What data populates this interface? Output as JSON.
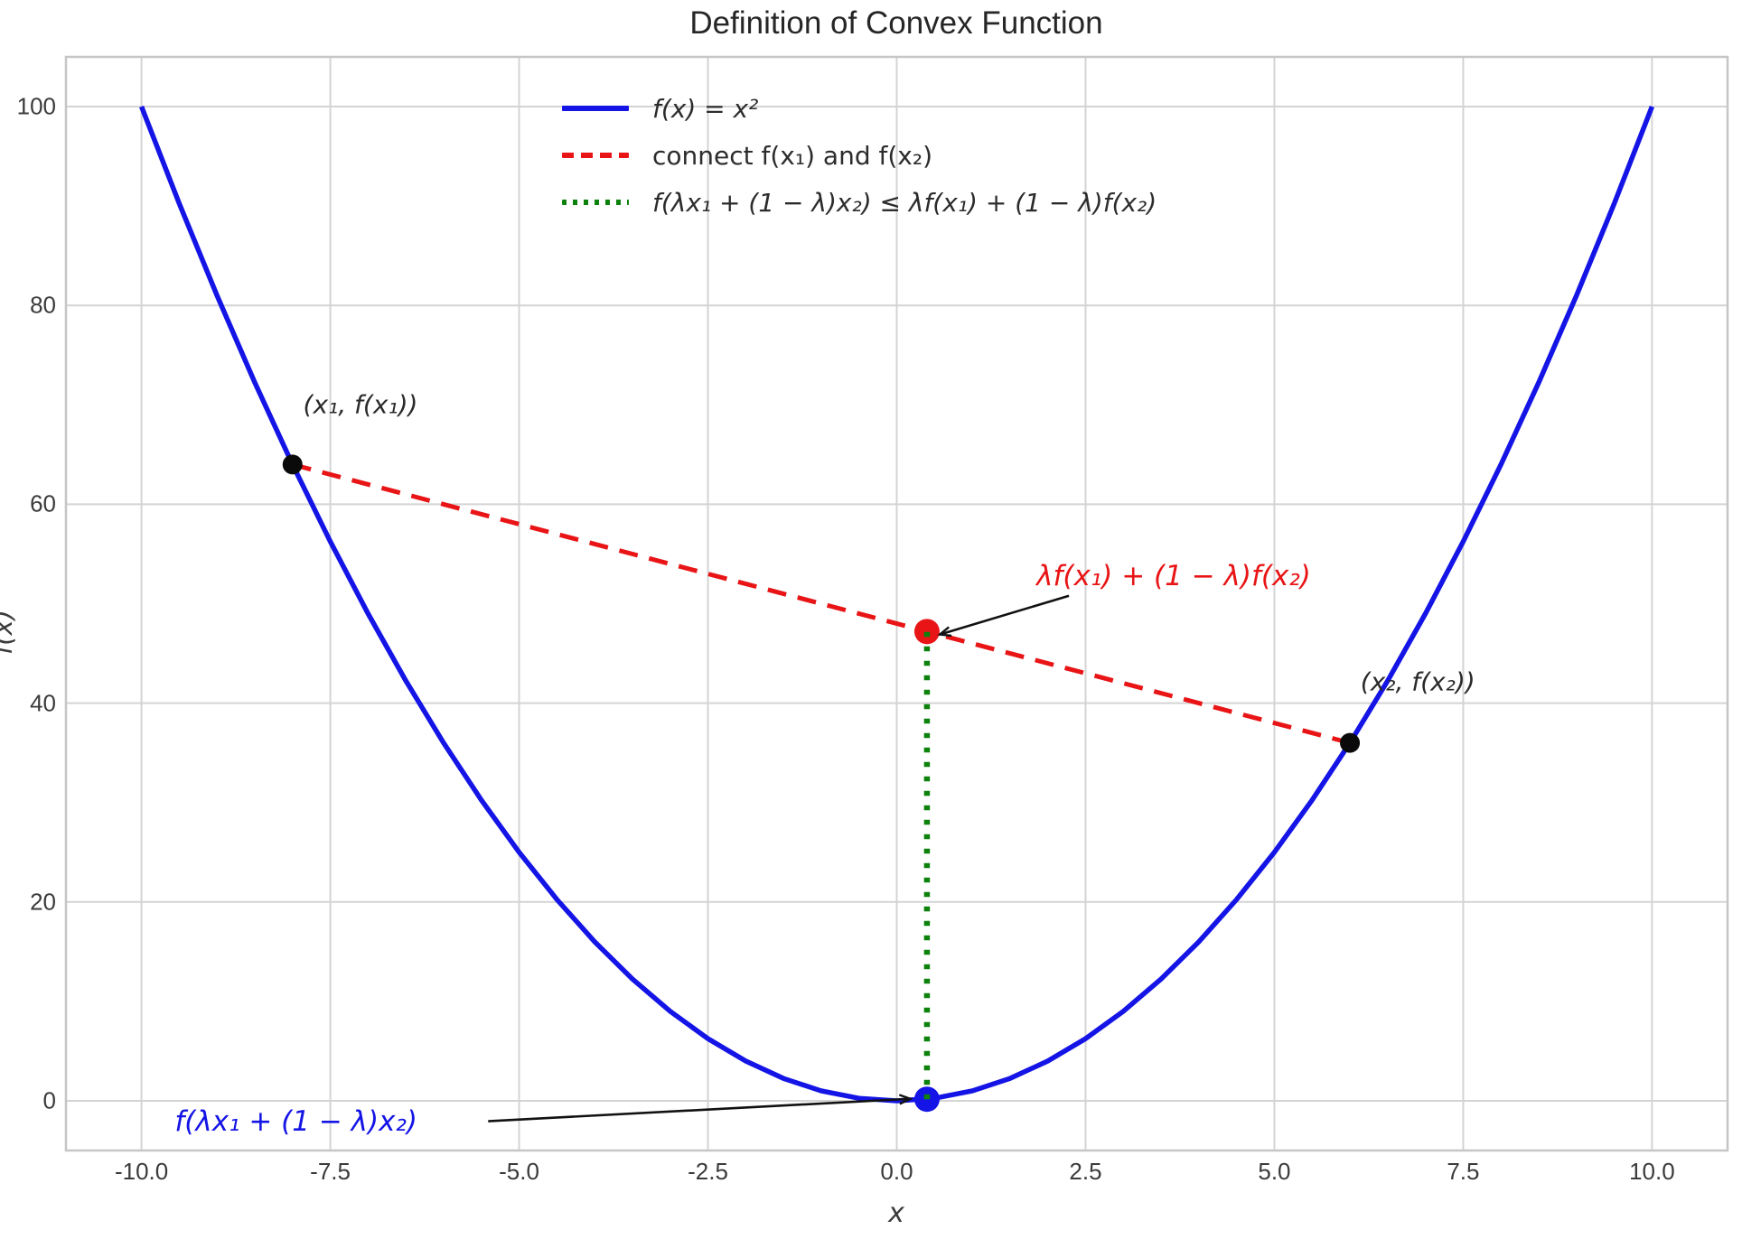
{
  "chart_data": {
    "type": "line",
    "title": "Definition of Convex Function",
    "xlabel": "x",
    "ylabel": "f(x)",
    "xlim": [
      -11,
      11
    ],
    "ylim": [
      -5,
      105
    ],
    "grid": true,
    "xticks": {
      "values": [
        -10,
        -7.5,
        -5,
        -2.5,
        0,
        2.5,
        5,
        7.5,
        10
      ],
      "labels": [
        "-10.0",
        "-7.5",
        "-5.0",
        "-2.5",
        "0.0",
        "2.5",
        "5.0",
        "7.5",
        "10.0"
      ]
    },
    "yticks": {
      "values": [
        0,
        20,
        40,
        60,
        80,
        100
      ],
      "labels": [
        "0",
        "20",
        "40",
        "60",
        "80",
        "100"
      ]
    },
    "legend": {
      "position": "upper-center-left",
      "frame": false,
      "entries": [
        {
          "label": "f(x) = x²",
          "color": "#1414e6",
          "style": "solid"
        },
        {
          "label": "connect f(x₁) and f(x₂)",
          "color": "#e81416",
          "style": "dashed"
        },
        {
          "label": "f(λx₁ + (1 − λ)x₂) ≤ λf(x₁) + (1 − λ)f(x₂)",
          "color": "#0c810c",
          "style": "dotted"
        }
      ]
    },
    "params": {
      "x1": -8,
      "x2": 6,
      "lambda": 0.4
    },
    "series": [
      {
        "name": "parabola",
        "style": "solid",
        "color": "#1414e6",
        "width": 5.5,
        "points": [
          [
            -10,
            100
          ],
          [
            -9.5,
            90.25
          ],
          [
            -9,
            81
          ],
          [
            -8.5,
            72.25
          ],
          [
            -8,
            64
          ],
          [
            -7.5,
            56.25
          ],
          [
            -7,
            49
          ],
          [
            -6.5,
            42.25
          ],
          [
            -6,
            36
          ],
          [
            -5.5,
            30.25
          ],
          [
            -5,
            25
          ],
          [
            -4.5,
            20.25
          ],
          [
            -4,
            16
          ],
          [
            -3.5,
            12.25
          ],
          [
            -3,
            9
          ],
          [
            -2.5,
            6.25
          ],
          [
            -2,
            4
          ],
          [
            -1.5,
            2.25
          ],
          [
            -1,
            1
          ],
          [
            -0.5,
            0.25
          ],
          [
            0,
            0
          ],
          [
            0.5,
            0.25
          ],
          [
            1,
            1
          ],
          [
            1.5,
            2.25
          ],
          [
            2,
            4
          ],
          [
            2.5,
            6.25
          ],
          [
            3,
            9
          ],
          [
            3.5,
            12.25
          ],
          [
            4,
            16
          ],
          [
            4.5,
            20.25
          ],
          [
            5,
            25
          ],
          [
            5.5,
            30.25
          ],
          [
            6,
            36
          ],
          [
            6.5,
            42.25
          ],
          [
            7,
            49
          ],
          [
            7.5,
            56.25
          ],
          [
            8,
            64
          ],
          [
            8.5,
            72.25
          ],
          [
            9,
            81
          ],
          [
            9.5,
            90.25
          ],
          [
            10,
            100
          ]
        ]
      },
      {
        "name": "chord",
        "style": "dashed",
        "color": "#e81416",
        "width": 5,
        "points": [
          [
            -8,
            64
          ],
          [
            6,
            36
          ]
        ]
      },
      {
        "name": "inequality-drop",
        "style": "dotted",
        "color": "#0c810c",
        "width": 6.5,
        "points": [
          [
            0.4,
            0.16
          ],
          [
            0.4,
            47.2
          ]
        ]
      }
    ],
    "markers": [
      {
        "name": "point-x1",
        "x": -8,
        "y": 64,
        "color": "#0a0a0a",
        "r": 11
      },
      {
        "name": "point-x2",
        "x": 6,
        "y": 36,
        "color": "#0a0a0a",
        "r": 11
      },
      {
        "name": "point-chord-value",
        "x": 0.4,
        "y": 47.2,
        "color": "#e81416",
        "r": 14
      },
      {
        "name": "point-curve-value",
        "x": 0.4,
        "y": 0.16,
        "color": "#1414e6",
        "r": 14
      }
    ],
    "annotations": [
      {
        "text": "(x₁, f(x₁))",
        "color": "#2a2a2a",
        "x": -7.1,
        "y": 70.0,
        "anchor": "middle",
        "arrow": false
      },
      {
        "text": "(x₂, f(x₂))",
        "color": "#2a2a2a",
        "x": 6.9,
        "y": 42.1,
        "anchor": "middle",
        "arrow": false
      },
      {
        "text": "λf(x₁) + (1 − λ)f(x₂)",
        "color": "#e81416",
        "x": 1.85,
        "y": 52.8,
        "anchor": "start",
        "arrow": true,
        "ax": 2.28,
        "ay": 50.8,
        "tx": 0.57,
        "ty": 46.9
      },
      {
        "text": "f(λx₁ + (1 − λ)x₂)",
        "color": "#1414e6",
        "x": -9.56,
        "y": -2.1,
        "anchor": "start",
        "arrow": true,
        "ax": -5.41,
        "ay": -2.05,
        "tx": 0.18,
        "ty": 0.2
      }
    ],
    "arrow_color": "#111111"
  }
}
